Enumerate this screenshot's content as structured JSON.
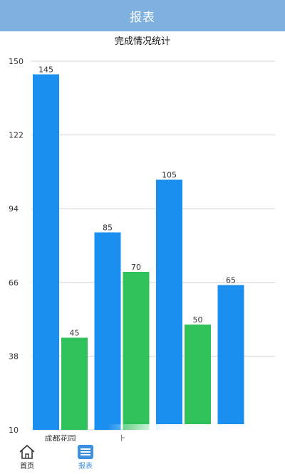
{
  "header": {
    "title": "报表"
  },
  "chart_data": {
    "type": "bar",
    "title": "完成情况统计",
    "xlabel": "",
    "ylabel": "",
    "ylim": [
      10,
      150
    ],
    "yticks": [
      10,
      38,
      66,
      94,
      122,
      150
    ],
    "grid": true,
    "categories": [
      "成都花园",
      "上",
      "",
      ""
    ],
    "series": [
      {
        "color": "#1a8ff0",
        "values": [
          145,
          85,
          105,
          65
        ]
      },
      {
        "color": "#2fc25b",
        "values": [
          45,
          70,
          50,
          null
        ]
      }
    ]
  },
  "nav": {
    "home_label": "首页",
    "report_label": "报表"
  },
  "colors": {
    "header_bg": "#7eb0e0",
    "active_nav": "#3d8fe0"
  }
}
